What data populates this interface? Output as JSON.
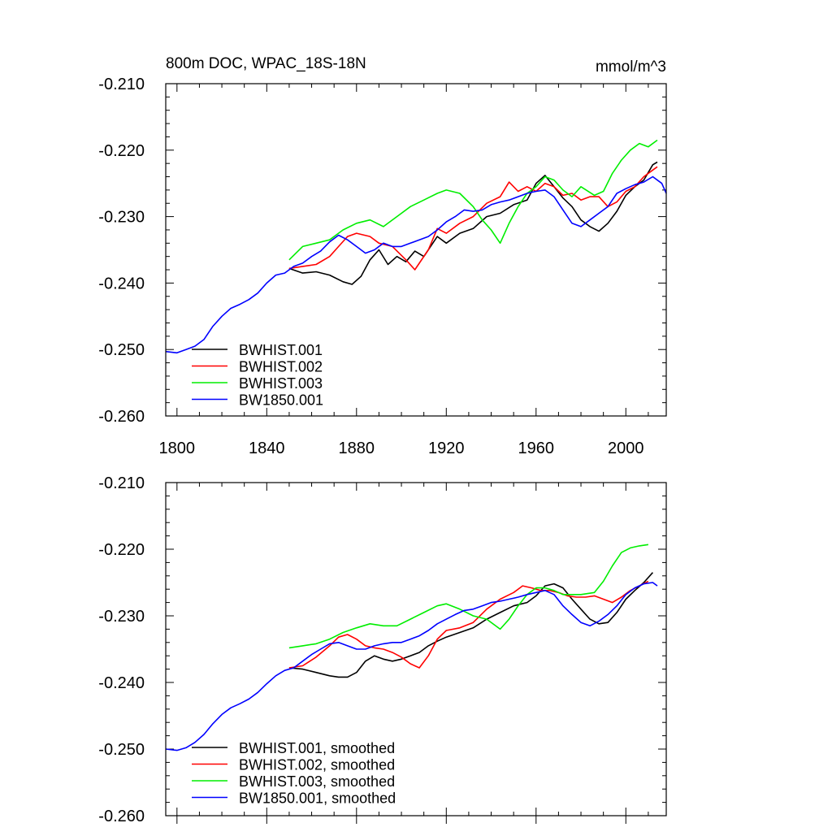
{
  "chart_data": [
    {
      "type": "line",
      "title": "800m DOC, WPAC_18S-18N",
      "units": "mmol/m^3",
      "xlim": [
        1795,
        2018
      ],
      "ylim": [
        -0.26,
        -0.21
      ],
      "x_ticks": [
        1800,
        1840,
        1880,
        1920,
        1960,
        2000
      ],
      "y_ticks": [
        -0.21,
        -0.22,
        -0.23,
        -0.24,
        -0.25,
        -0.26
      ],
      "y_tick_labels": [
        "-0.210",
        "-0.220",
        "-0.230",
        "-0.240",
        "-0.250",
        "-0.260"
      ],
      "legend_position": "bottom-left",
      "series": [
        {
          "name": "BWHIST.001",
          "color": "#000000",
          "x": [
            1850,
            1856,
            1862,
            1868,
            1874,
            1878,
            1882,
            1886,
            1890,
            1894,
            1898,
            1902,
            1906,
            1910,
            1916,
            1920,
            1926,
            1932,
            1938,
            1944,
            1950,
            1956,
            1960,
            1964,
            1968,
            1972,
            1976,
            1980,
            1984,
            1988,
            1992,
            1996,
            2000,
            2004,
            2008,
            2012,
            2014
          ],
          "y": [
            -0.2378,
            -0.2385,
            -0.2383,
            -0.2388,
            -0.2398,
            -0.2402,
            -0.239,
            -0.2365,
            -0.235,
            -0.2372,
            -0.236,
            -0.2368,
            -0.2352,
            -0.236,
            -0.233,
            -0.234,
            -0.2325,
            -0.2318,
            -0.23,
            -0.2295,
            -0.2282,
            -0.2275,
            -0.225,
            -0.2238,
            -0.2255,
            -0.2272,
            -0.2285,
            -0.2305,
            -0.2315,
            -0.2322,
            -0.231,
            -0.2292,
            -0.2268,
            -0.2255,
            -0.2245,
            -0.2222,
            -0.2218
          ]
        },
        {
          "name": "BWHIST.002",
          "color": "#ff0000",
          "x": [
            1850,
            1856,
            1862,
            1868,
            1872,
            1876,
            1880,
            1886,
            1890,
            1896,
            1902,
            1906,
            1912,
            1916,
            1920,
            1926,
            1932,
            1938,
            1944,
            1948,
            1952,
            1956,
            1960,
            1964,
            1968,
            1972,
            1976,
            1980,
            1984,
            1988,
            1992,
            1996,
            2000,
            2004,
            2008,
            2012,
            2014
          ],
          "y": [
            -0.2378,
            -0.2375,
            -0.2372,
            -0.236,
            -0.2345,
            -0.233,
            -0.2325,
            -0.233,
            -0.234,
            -0.2345,
            -0.2365,
            -0.238,
            -0.235,
            -0.2318,
            -0.2325,
            -0.231,
            -0.23,
            -0.228,
            -0.227,
            -0.2248,
            -0.2262,
            -0.2255,
            -0.2262,
            -0.225,
            -0.2255,
            -0.2268,
            -0.2265,
            -0.2275,
            -0.227,
            -0.227,
            -0.2285,
            -0.2278,
            -0.2262,
            -0.2255,
            -0.224,
            -0.223,
            -0.2225
          ]
        },
        {
          "name": "BWHIST.003",
          "color": "#00ee00",
          "x": [
            1850,
            1856,
            1862,
            1868,
            1874,
            1880,
            1886,
            1892,
            1898,
            1904,
            1910,
            1916,
            1920,
            1926,
            1932,
            1936,
            1940,
            1944,
            1948,
            1952,
            1956,
            1960,
            1964,
            1968,
            1972,
            1976,
            1980,
            1986,
            1990,
            1994,
            1998,
            2002,
            2006,
            2010,
            2014
          ],
          "y": [
            -0.2365,
            -0.2345,
            -0.234,
            -0.2335,
            -0.232,
            -0.231,
            -0.2305,
            -0.2315,
            -0.23,
            -0.2285,
            -0.2275,
            -0.2265,
            -0.226,
            -0.2265,
            -0.2285,
            -0.2305,
            -0.232,
            -0.234,
            -0.231,
            -0.2285,
            -0.2265,
            -0.2255,
            -0.224,
            -0.2245,
            -0.226,
            -0.227,
            -0.2255,
            -0.2268,
            -0.2262,
            -0.2235,
            -0.2215,
            -0.22,
            -0.219,
            -0.2195,
            -0.2185
          ]
        },
        {
          "name": "BW1850.001",
          "color": "#0000ff",
          "x": [
            1795,
            1800,
            1804,
            1808,
            1812,
            1816,
            1820,
            1824,
            1828,
            1832,
            1836,
            1840,
            1844,
            1848,
            1852,
            1856,
            1860,
            1864,
            1868,
            1872,
            1876,
            1880,
            1884,
            1888,
            1892,
            1896,
            1900,
            1904,
            1908,
            1912,
            1916,
            1920,
            1924,
            1928,
            1932,
            1936,
            1940,
            1944,
            1948,
            1952,
            1956,
            1960,
            1964,
            1968,
            1972,
            1976,
            1980,
            1984,
            1988,
            1992,
            1996,
            2000,
            2004,
            2008,
            2012,
            2016,
            2018
          ],
          "y": [
            -0.2503,
            -0.2505,
            -0.25,
            -0.2495,
            -0.2485,
            -0.2465,
            -0.245,
            -0.2438,
            -0.2432,
            -0.2425,
            -0.2415,
            -0.24,
            -0.2388,
            -0.2385,
            -0.2375,
            -0.237,
            -0.236,
            -0.2352,
            -0.2338,
            -0.2328,
            -0.2335,
            -0.2345,
            -0.2355,
            -0.235,
            -0.234,
            -0.2345,
            -0.2345,
            -0.234,
            -0.2335,
            -0.233,
            -0.232,
            -0.2308,
            -0.23,
            -0.229,
            -0.2292,
            -0.229,
            -0.2282,
            -0.2278,
            -0.2275,
            -0.227,
            -0.2265,
            -0.2262,
            -0.226,
            -0.227,
            -0.229,
            -0.231,
            -0.2315,
            -0.2305,
            -0.2295,
            -0.2285,
            -0.2265,
            -0.2258,
            -0.2252,
            -0.2248,
            -0.224,
            -0.225,
            -0.2265
          ]
        }
      ]
    },
    {
      "type": "line",
      "xlim": [
        1795,
        2018
      ],
      "ylim": [
        -0.26,
        -0.21
      ],
      "x_ticks": [
        1800,
        1840,
        1880,
        1920,
        1960,
        2000
      ],
      "y_ticks": [
        -0.21,
        -0.22,
        -0.23,
        -0.24,
        -0.25,
        -0.26
      ],
      "y_tick_labels": [
        "-0.210",
        "-0.220",
        "-0.230",
        "-0.240",
        "-0.250",
        "-0.260"
      ],
      "legend_position": "bottom-left",
      "series": [
        {
          "name": "BWHIST.001, smoothed",
          "color": "#000000",
          "x": [
            1850,
            1856,
            1862,
            1868,
            1872,
            1876,
            1880,
            1884,
            1888,
            1892,
            1896,
            1900,
            1904,
            1908,
            1912,
            1916,
            1920,
            1926,
            1932,
            1938,
            1944,
            1950,
            1956,
            1960,
            1964,
            1968,
            1972,
            1976,
            1980,
            1984,
            1988,
            1992,
            1996,
            2000,
            2004,
            2008,
            2012
          ],
          "y": [
            -0.2378,
            -0.238,
            -0.2385,
            -0.239,
            -0.2392,
            -0.2392,
            -0.2385,
            -0.2368,
            -0.236,
            -0.2365,
            -0.2368,
            -0.2365,
            -0.236,
            -0.2355,
            -0.2345,
            -0.2338,
            -0.2332,
            -0.2325,
            -0.2318,
            -0.2305,
            -0.2295,
            -0.2285,
            -0.228,
            -0.227,
            -0.2255,
            -0.2252,
            -0.2258,
            -0.2275,
            -0.229,
            -0.2305,
            -0.2312,
            -0.231,
            -0.2295,
            -0.2275,
            -0.2262,
            -0.225,
            -0.2235
          ]
        },
        {
          "name": "BWHIST.002, smoothed",
          "color": "#ff0000",
          "x": [
            1850,
            1856,
            1862,
            1868,
            1872,
            1876,
            1880,
            1884,
            1888,
            1892,
            1896,
            1900,
            1904,
            1908,
            1912,
            1916,
            1920,
            1926,
            1932,
            1938,
            1944,
            1950,
            1954,
            1958,
            1962,
            1966,
            1970,
            1974,
            1978,
            1982,
            1986,
            1990,
            1994,
            1998,
            2002,
            2006,
            2010
          ],
          "y": [
            -0.2378,
            -0.2375,
            -0.2362,
            -0.2345,
            -0.2332,
            -0.2328,
            -0.2335,
            -0.2345,
            -0.2348,
            -0.235,
            -0.2355,
            -0.2362,
            -0.2372,
            -0.2378,
            -0.236,
            -0.2335,
            -0.2322,
            -0.2318,
            -0.231,
            -0.229,
            -0.2275,
            -0.2265,
            -0.2255,
            -0.2258,
            -0.2262,
            -0.2262,
            -0.2265,
            -0.227,
            -0.2272,
            -0.2272,
            -0.227,
            -0.2275,
            -0.228,
            -0.2272,
            -0.2262,
            -0.2255,
            -0.2248
          ]
        },
        {
          "name": "BWHIST.003, smoothed",
          "color": "#00ee00",
          "x": [
            1850,
            1856,
            1862,
            1868,
            1874,
            1880,
            1886,
            1892,
            1898,
            1904,
            1910,
            1916,
            1920,
            1926,
            1932,
            1938,
            1944,
            1948,
            1952,
            1956,
            1960,
            1964,
            1968,
            1972,
            1976,
            1980,
            1986,
            1990,
            1994,
            1998,
            2002,
            2006,
            2010
          ],
          "y": [
            -0.2348,
            -0.2345,
            -0.2342,
            -0.2335,
            -0.2325,
            -0.2318,
            -0.2312,
            -0.2315,
            -0.2315,
            -0.2305,
            -0.2295,
            -0.2285,
            -0.2282,
            -0.229,
            -0.23,
            -0.2305,
            -0.232,
            -0.2305,
            -0.2285,
            -0.2268,
            -0.2258,
            -0.2258,
            -0.2262,
            -0.2268,
            -0.2268,
            -0.2268,
            -0.2265,
            -0.2248,
            -0.2225,
            -0.2205,
            -0.2198,
            -0.2195,
            -0.2193
          ]
        },
        {
          "name": "BW1850.001, smoothed",
          "color": "#0000ff",
          "x": [
            1795,
            1800,
            1804,
            1808,
            1812,
            1816,
            1820,
            1824,
            1828,
            1832,
            1836,
            1840,
            1844,
            1848,
            1852,
            1856,
            1860,
            1864,
            1868,
            1872,
            1876,
            1880,
            1884,
            1888,
            1892,
            1896,
            1900,
            1904,
            1908,
            1912,
            1916,
            1920,
            1924,
            1928,
            1932,
            1936,
            1940,
            1944,
            1948,
            1952,
            1956,
            1960,
            1964,
            1968,
            1972,
            1976,
            1980,
            1984,
            1988,
            1992,
            1996,
            2000,
            2004,
            2008,
            2012,
            2014
          ],
          "y": [
            -0.25,
            -0.2502,
            -0.2498,
            -0.249,
            -0.2478,
            -0.2462,
            -0.2448,
            -0.2438,
            -0.2432,
            -0.2425,
            -0.2415,
            -0.2402,
            -0.239,
            -0.2382,
            -0.2378,
            -0.2368,
            -0.2358,
            -0.235,
            -0.2342,
            -0.234,
            -0.2345,
            -0.235,
            -0.235,
            -0.2345,
            -0.2342,
            -0.234,
            -0.234,
            -0.2335,
            -0.233,
            -0.2322,
            -0.2312,
            -0.2305,
            -0.2298,
            -0.2292,
            -0.229,
            -0.2285,
            -0.228,
            -0.2278,
            -0.2275,
            -0.2272,
            -0.2268,
            -0.2265,
            -0.2262,
            -0.2268,
            -0.2285,
            -0.2298,
            -0.231,
            -0.2315,
            -0.2308,
            -0.2298,
            -0.2285,
            -0.2268,
            -0.2258,
            -0.2252,
            -0.225,
            -0.2255
          ]
        }
      ]
    }
  ]
}
